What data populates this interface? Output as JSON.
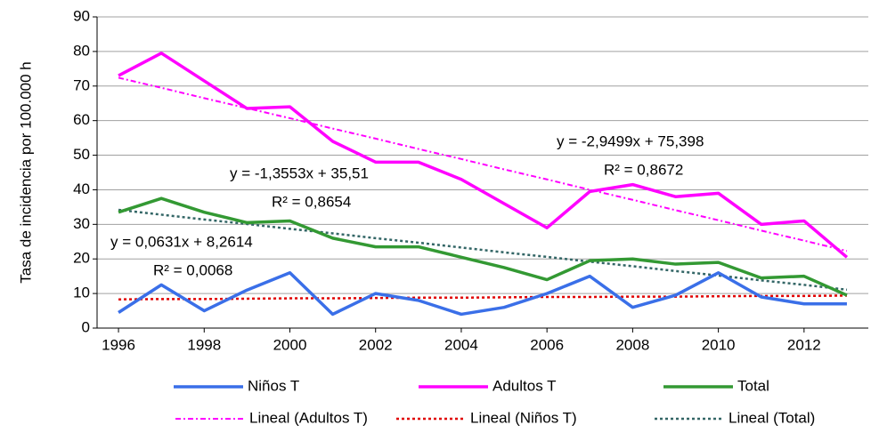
{
  "chart_data": {
    "type": "line",
    "y_label": "Tasa de incidencia por 100.000 h",
    "x": [
      1996,
      1997,
      1998,
      1999,
      2000,
      2001,
      2002,
      2003,
      2004,
      2005,
      2006,
      2007,
      2008,
      2009,
      2010,
      2011,
      2012,
      2013
    ],
    "xlim": [
      1995.5,
      2013.5
    ],
    "xticks": [
      1996,
      1998,
      2000,
      2002,
      2004,
      2006,
      2008,
      2010,
      2012
    ],
    "ylim": [
      0,
      90
    ],
    "yticks": [
      0,
      10,
      20,
      30,
      40,
      50,
      60,
      70,
      80,
      90
    ],
    "grid": true,
    "series": [
      {
        "name": "Niños T",
        "color": "#3a6fe8",
        "style": "solid",
        "values": [
          4.5,
          12.5,
          5,
          11,
          16,
          4,
          10,
          8,
          4,
          6,
          10,
          15,
          6,
          9.5,
          16,
          9,
          7,
          7
        ]
      },
      {
        "name": "Adultos T",
        "color": "#ff00ff",
        "style": "solid",
        "values": [
          73,
          79.5,
          71.5,
          63.5,
          64,
          54,
          48,
          48,
          43,
          36,
          29,
          39.5,
          41.5,
          38,
          39,
          30,
          31,
          20.5
        ]
      },
      {
        "name": "Total",
        "color": "#339933",
        "style": "solid",
        "values": [
          33.5,
          37.5,
          33.5,
          30.5,
          31,
          26,
          23.5,
          23.5,
          20.5,
          17.5,
          14,
          19.5,
          20,
          18.5,
          19,
          14.5,
          15,
          9.5
        ]
      },
      {
        "name": "Lineal (Adultos T)",
        "color": "#ff00ff",
        "style": "dashdot",
        "values": [
          72.4,
          69.5,
          66.5,
          63.6,
          60.7,
          57.7,
          54.8,
          51.8,
          48.9,
          45.9,
          43.0,
          40.0,
          37.1,
          34.1,
          31.2,
          28.2,
          25.3,
          22.3
        ]
      },
      {
        "name": "Lineal (Niños T)",
        "color": "#e00000",
        "style": "dot",
        "values": [
          8.3,
          8.4,
          8.4,
          8.5,
          8.6,
          8.6,
          8.7,
          8.8,
          8.8,
          8.9,
          9.0,
          9.0,
          9.1,
          9.1,
          9.2,
          9.3,
          9.3,
          9.4
        ]
      },
      {
        "name": "Lineal (Total)",
        "color": "#336666",
        "style": "dot",
        "values": [
          34.2,
          32.8,
          31.4,
          30.1,
          28.7,
          27.4,
          26.0,
          24.7,
          23.3,
          21.9,
          20.6,
          19.2,
          17.9,
          16.5,
          15.2,
          13.8,
          12.5,
          11.1
        ]
      }
    ],
    "annotations": [
      "y = -2,9499x + 75,398",
      "R² = 0,8672",
      "y = -1,3553x + 35,51",
      "R² = 0,8654",
      "y = 0,0631x + 8,2614",
      "R² = 0,0068"
    ]
  }
}
